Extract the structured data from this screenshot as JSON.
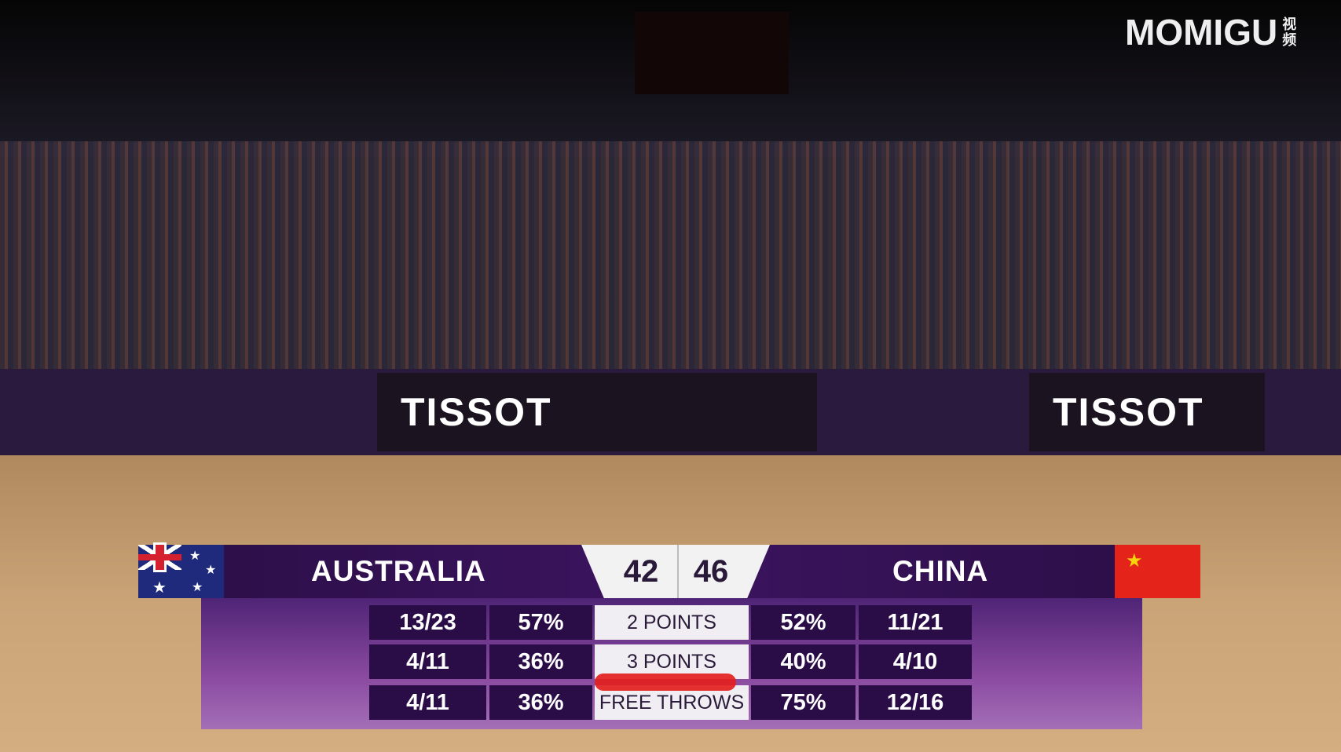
{
  "broadcast_logo": {
    "text": "MOMIGU",
    "sub": "视频"
  },
  "scoreboard": {
    "home": {
      "name": "AUSTRALIA",
      "score": "42",
      "flag": "australia-flag"
    },
    "away": {
      "name": "CHINA",
      "score": "46",
      "flag": "china-flag"
    },
    "rows": [
      {
        "label": "2 POINTS",
        "home_made": "13/23",
        "home_pct": "57%",
        "away_pct": "52%",
        "away_made": "11/21"
      },
      {
        "label": "3 POINTS",
        "home_made": "4/11",
        "home_pct": "36%",
        "away_pct": "40%",
        "away_made": "4/10"
      },
      {
        "label": "FREE THROWS",
        "home_made": "4/11",
        "home_pct": "36%",
        "away_pct": "75%",
        "away_made": "12/16"
      }
    ]
  },
  "ad_text": "TISSOT",
  "colors": {
    "panel": "#3c1460",
    "cell": "#2a0c47",
    "annotation": "#e41f1f"
  }
}
